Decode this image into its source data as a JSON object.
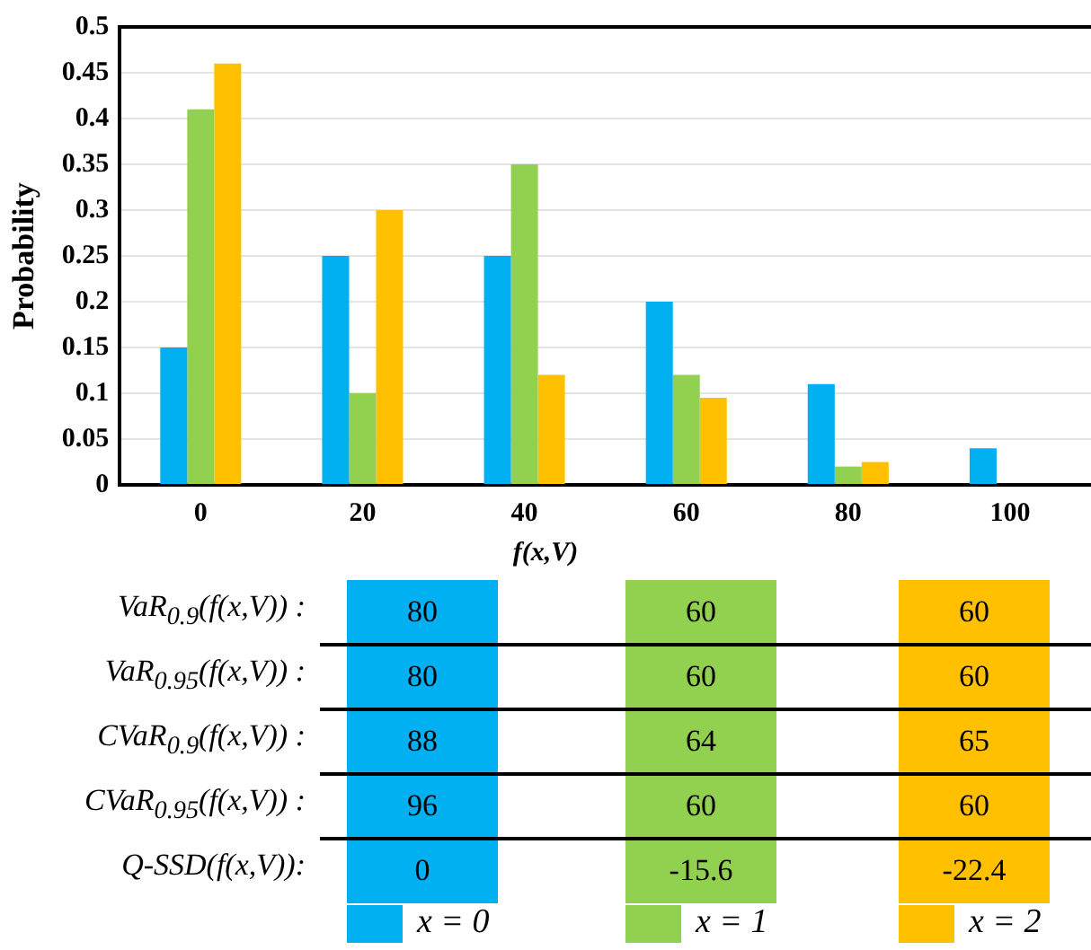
{
  "chart_data": [
    {
      "type": "bar",
      "xlabel": "f(x,V)",
      "ylabel": "Probability",
      "categories": [
        "0",
        "20",
        "40",
        "60",
        "80",
        "100"
      ],
      "ylim": [
        0,
        0.5
      ],
      "yticks": [
        0,
        0.05,
        0.1,
        0.15,
        0.2,
        0.25,
        0.3,
        0.35,
        0.4,
        0.45,
        0.5
      ],
      "grid": "y",
      "legend": "bottom",
      "series": [
        {
          "name": "x = 0",
          "color": "#00b0f0",
          "values": [
            0.15,
            0.25,
            0.25,
            0.2,
            0.11,
            0.04
          ]
        },
        {
          "name": "x = 1",
          "color": "#92d050",
          "values": [
            0.41,
            0.1,
            0.35,
            0.12,
            0.02,
            0
          ]
        },
        {
          "name": "x = 2",
          "color": "#ffc000",
          "values": [
            0.46,
            0.3,
            0.12,
            0.095,
            0.025,
            0
          ]
        }
      ]
    },
    {
      "type": "heatmap",
      "data_labels": true,
      "categories": [
        null,
        null,
        null
      ],
      "colors": [
        "#00b0f0",
        "#92d050",
        "#ffc000"
      ],
      "cells": [
        [
          80,
          60,
          60
        ],
        [
          80,
          60,
          60
        ],
        [
          88,
          64,
          65
        ],
        [
          96,
          60,
          60
        ],
        [
          0,
          -15.6,
          -22.4
        ]
      ],
      "y_categories": [
        "VaR$_{0.9}$(f(x,V))  :",
        "VaR$_{0.95}$(f(x,V))  :",
        "CVaR$_{0.9}$(f(x,V)) :",
        "CVaR$_{0.95}$(f(x,V)) :",
        "Q-SSD(f(x,V)):"
      ]
    }
  ]
}
